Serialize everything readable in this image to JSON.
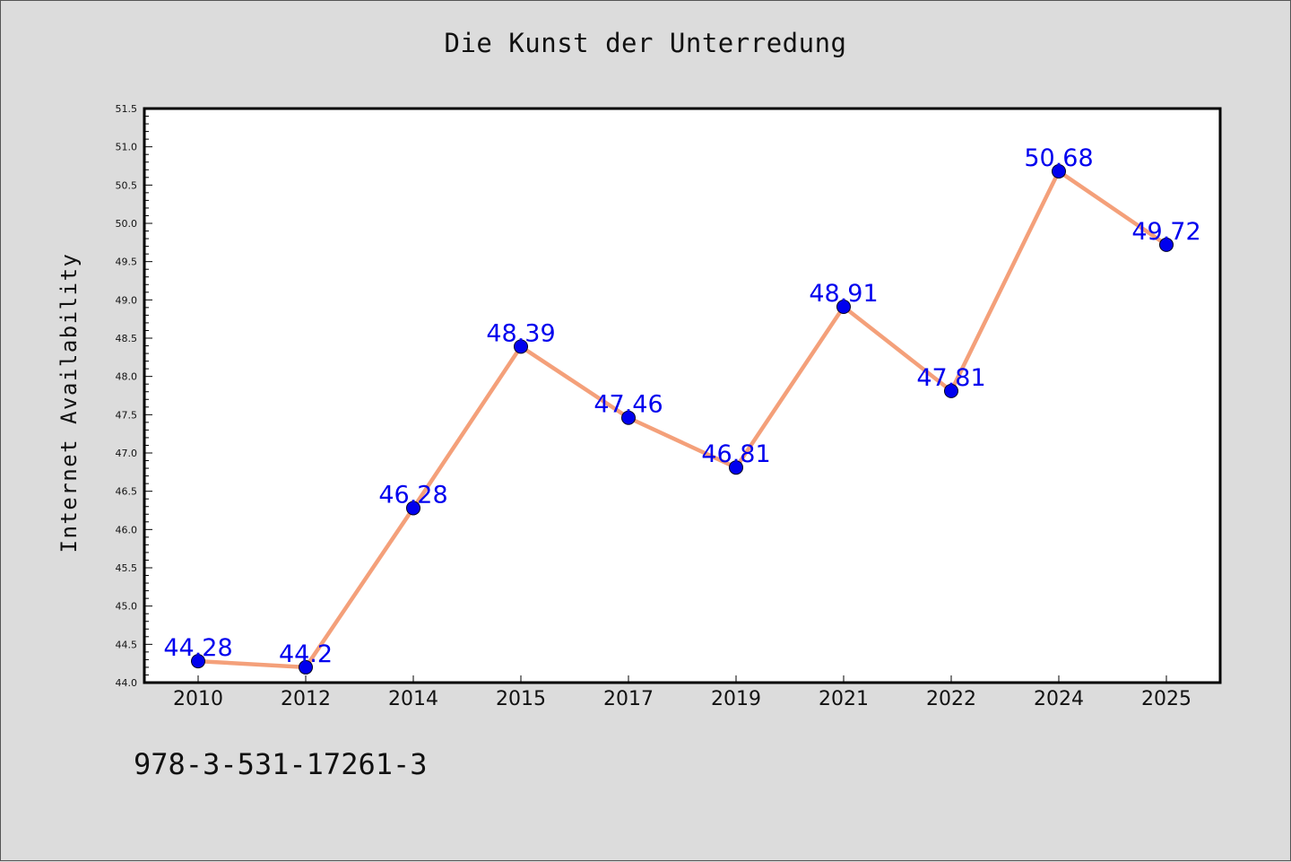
{
  "chart_data": {
    "type": "line",
    "title": "Die Kunst der Unterredung",
    "xlabel": "",
    "ylabel": "Internet Availability",
    "categories": [
      "2010",
      "2012",
      "2014",
      "2015",
      "2017",
      "2019",
      "2021",
      "2022",
      "2024",
      "2025"
    ],
    "series": [
      {
        "values": [
          44.28,
          44.2,
          46.28,
          48.39,
          47.46,
          46.81,
          48.91,
          47.81,
          50.68,
          49.72
        ]
      }
    ],
    "data_labels": [
      "44.28",
      "44.2",
      "46.28",
      "48.39",
      "47.46",
      "46.81",
      "48.91",
      "47.81",
      "50.68",
      "49.72"
    ],
    "ylim": [
      44.0,
      51.5
    ],
    "yticks": [
      "44.0",
      "44.5",
      "45.0",
      "45.5",
      "46.0",
      "46.5",
      "47.0",
      "47.5",
      "48.0",
      "48.5",
      "49.0",
      "49.5",
      "50.0",
      "50.5",
      "51.0",
      "51.5"
    ],
    "grid": false,
    "legend": "none",
    "colors": {
      "line": "#f4a07a",
      "marker": "#0000ee",
      "label": "#0000ee",
      "background": "#dcdcdc",
      "plot_background": "#ffffff"
    }
  },
  "footer": {
    "isbn": "978-3-531-17261-3"
  }
}
